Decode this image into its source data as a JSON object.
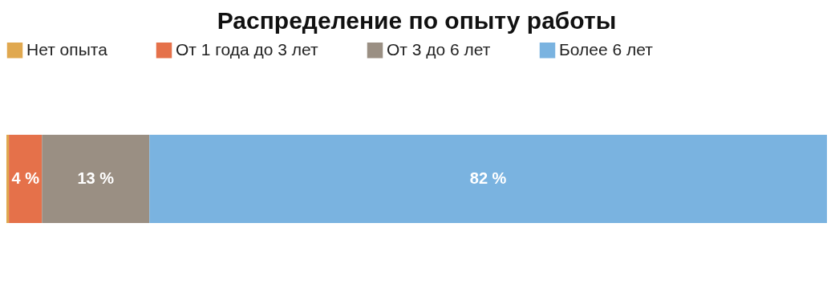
{
  "chart_data": {
    "type": "bar",
    "title": "Распределение по опыту работы",
    "orientation": "horizontal",
    "stacked": true,
    "categories": [
      null
    ],
    "legend": "top left",
    "series": [
      {
        "name": "Нет опыта",
        "color": "#e0a84f",
        "values": [
          0.3
        ],
        "value_labels": [
          null
        ]
      },
      {
        "name": "От 1 года до 3 лет",
        "color": "#e5714a",
        "values": [
          4
        ],
        "value_labels": [
          "4 %"
        ]
      },
      {
        "name": "От 3 до 6 лет",
        "color": "#9a8f83",
        "values": [
          13
        ],
        "value_labels": [
          "13 %"
        ]
      },
      {
        "name": "Более 6 лет",
        "color": "#7ab3e0",
        "values": [
          82
        ],
        "value_labels": [
          "82 %"
        ]
      }
    ]
  }
}
